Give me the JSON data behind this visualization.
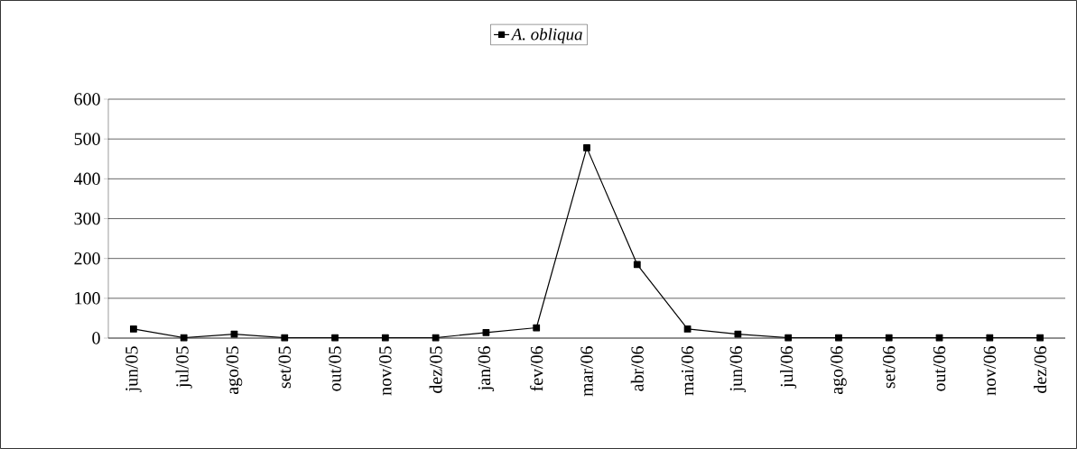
{
  "chart_data": {
    "type": "line",
    "categories": [
      "jun/05",
      "jul/05",
      "ago/05",
      "set/05",
      "out/05",
      "nov/05",
      "dez/05",
      "jan/06",
      "fev/06",
      "mar/06",
      "abr/06",
      "mai/06",
      "jun/06",
      "jul/06",
      "ago/06",
      "set/06",
      "out/06",
      "nov/06",
      "dez/06"
    ],
    "series": [
      {
        "name": "*A. obliqua*",
        "color": "#000000",
        "values": [
          23,
          1,
          10,
          1,
          1,
          1,
          1,
          14,
          26,
          478,
          185,
          23,
          10,
          1,
          1,
          1,
          1,
          1,
          1
        ]
      }
    ],
    "ylim": [
      0,
      600
    ],
    "yticks": [
      0,
      100,
      200,
      300,
      400,
      500,
      600
    ],
    "grid": "y",
    "legend": "top",
    "marker": "square",
    "line_style": "solid"
  }
}
